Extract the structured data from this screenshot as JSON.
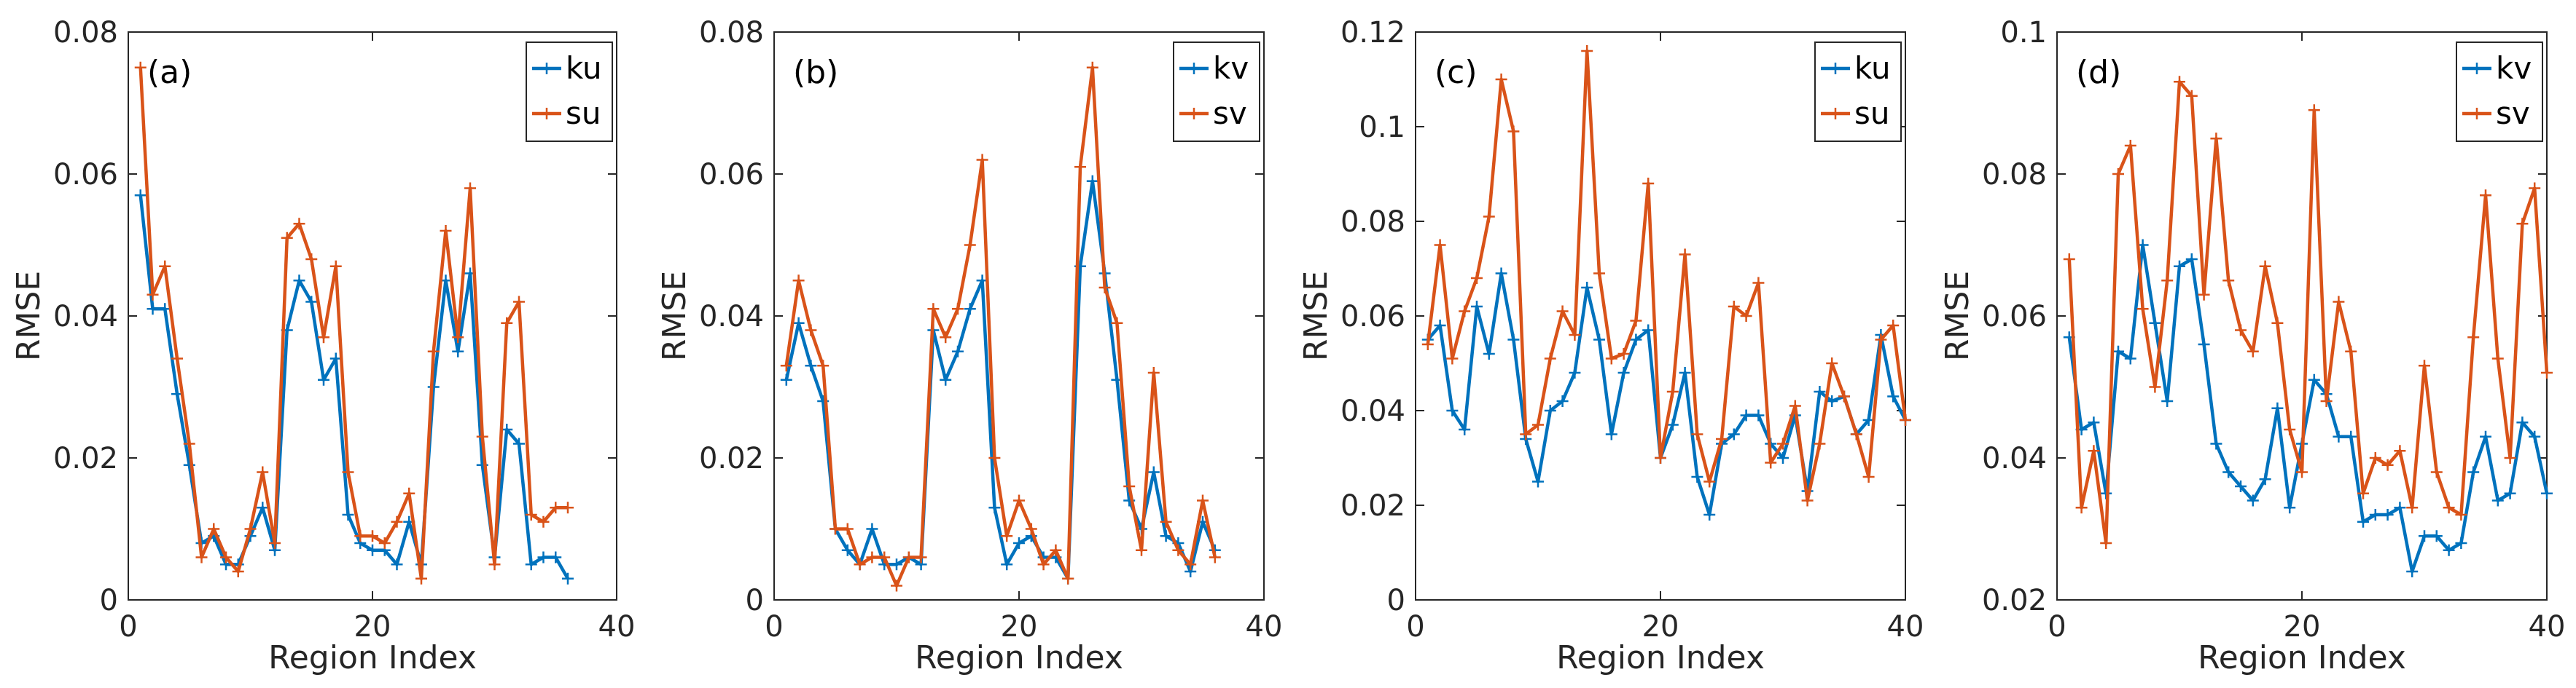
{
  "chart_data": [
    {
      "type": "line",
      "panel_label": "(a)",
      "xlabel": "Region Index",
      "ylabel": "RMSE",
      "xlim": [
        0,
        40
      ],
      "ylim": [
        0,
        0.08
      ],
      "xticks": [
        0,
        20,
        40
      ],
      "xtick_labels": [
        "0",
        "20",
        "40"
      ],
      "yticks": [
        0,
        0.02,
        0.04,
        0.06,
        0.08
      ],
      "ytick_labels": [
        "0",
        "0.02",
        "0.04",
        "0.06",
        "0.08"
      ],
      "legend_position": "top-right",
      "x": [
        1,
        2,
        3,
        4,
        5,
        6,
        7,
        8,
        9,
        10,
        11,
        12,
        13,
        14,
        15,
        16,
        17,
        18,
        19,
        20,
        21,
        22,
        23,
        24,
        25,
        26,
        27,
        28,
        29,
        30,
        31,
        32,
        33,
        34,
        35,
        36
      ],
      "series": [
        {
          "name": "ku",
          "color": "#0072BD",
          "values": [
            0.057,
            0.041,
            0.041,
            0.029,
            0.019,
            0.008,
            0.009,
            0.005,
            0.005,
            0.009,
            0.013,
            0.007,
            0.038,
            0.045,
            0.042,
            0.031,
            0.034,
            0.012,
            0.008,
            0.007,
            0.007,
            0.005,
            0.011,
            0.005,
            0.03,
            0.045,
            0.035,
            0.046,
            0.019,
            0.006,
            0.024,
            0.022,
            0.005,
            0.006,
            0.006,
            0.003
          ]
        },
        {
          "name": "su",
          "color": "#D95319",
          "values": [
            0.075,
            0.043,
            0.047,
            0.034,
            0.022,
            0.006,
            0.01,
            0.006,
            0.004,
            0.01,
            0.018,
            0.008,
            0.051,
            0.053,
            0.048,
            0.037,
            0.047,
            0.018,
            0.009,
            0.009,
            0.008,
            0.011,
            0.015,
            0.003,
            0.035,
            0.052,
            0.037,
            0.058,
            0.023,
            0.005,
            0.039,
            0.042,
            0.012,
            0.011,
            0.013,
            0.013
          ]
        }
      ]
    },
    {
      "type": "line",
      "panel_label": "(b)",
      "xlabel": "Region Index",
      "ylabel": "RMSE",
      "xlim": [
        0,
        40
      ],
      "ylim": [
        0,
        0.08
      ],
      "xticks": [
        0,
        20,
        40
      ],
      "xtick_labels": [
        "0",
        "20",
        "40"
      ],
      "yticks": [
        0,
        0.02,
        0.04,
        0.06,
        0.08
      ],
      "ytick_labels": [
        "0",
        "0.02",
        "0.04",
        "0.06",
        "0.08"
      ],
      "legend_position": "top-right",
      "x": [
        1,
        2,
        3,
        4,
        5,
        6,
        7,
        8,
        9,
        10,
        11,
        12,
        13,
        14,
        15,
        16,
        17,
        18,
        19,
        20,
        21,
        22,
        23,
        24,
        25,
        26,
        27,
        28,
        29,
        30,
        31,
        32,
        33,
        34,
        35,
        36
      ],
      "series": [
        {
          "name": "kv",
          "color": "#0072BD",
          "values": [
            0.031,
            0.039,
            0.033,
            0.028,
            0.01,
            0.007,
            0.005,
            0.01,
            0.005,
            0.005,
            0.006,
            0.005,
            0.038,
            0.031,
            0.035,
            0.041,
            0.045,
            0.013,
            0.005,
            0.008,
            0.009,
            0.006,
            0.006,
            0.003,
            0.047,
            0.059,
            0.046,
            0.031,
            0.014,
            0.01,
            0.018,
            0.009,
            0.008,
            0.004,
            0.011,
            0.007
          ]
        },
        {
          "name": "sv",
          "color": "#D95319",
          "values": [
            0.033,
            0.045,
            0.038,
            0.033,
            0.01,
            0.01,
            0.005,
            0.006,
            0.006,
            0.002,
            0.006,
            0.006,
            0.041,
            0.037,
            0.041,
            0.05,
            0.062,
            0.02,
            0.009,
            0.014,
            0.01,
            0.005,
            0.007,
            0.003,
            0.061,
            0.075,
            0.044,
            0.039,
            0.016,
            0.007,
            0.032,
            0.011,
            0.007,
            0.005,
            0.014,
            0.006
          ]
        }
      ]
    },
    {
      "type": "line",
      "panel_label": "(c)",
      "xlabel": "Region Index",
      "ylabel": "RMSE",
      "xlim": [
        0,
        40
      ],
      "ylim": [
        0,
        0.12
      ],
      "xticks": [
        0,
        20,
        40
      ],
      "xtick_labels": [
        "0",
        "20",
        "40"
      ],
      "yticks": [
        0,
        0.02,
        0.04,
        0.06,
        0.08,
        0.1,
        0.12
      ],
      "ytick_labels": [
        "0",
        "0.02",
        "0.04",
        "0.06",
        "0.08",
        "0.1",
        "0.12"
      ],
      "legend_position": "top-right",
      "x": [
        1,
        2,
        3,
        4,
        5,
        6,
        7,
        8,
        9,
        10,
        11,
        12,
        13,
        14,
        15,
        16,
        17,
        18,
        19,
        20,
        21,
        22,
        23,
        24,
        25,
        26,
        27,
        28,
        29,
        30,
        31,
        32,
        33,
        34,
        35,
        36,
        37,
        38,
        39,
        40
      ],
      "series": [
        {
          "name": "ku",
          "color": "#0072BD",
          "values": [
            0.055,
            0.058,
            0.04,
            0.036,
            0.062,
            0.052,
            0.069,
            0.055,
            0.034,
            0.025,
            0.04,
            0.042,
            0.048,
            0.066,
            0.055,
            0.035,
            0.048,
            0.055,
            0.057,
            0.03,
            0.037,
            0.048,
            0.026,
            0.018,
            0.033,
            0.035,
            0.039,
            0.039,
            0.033,
            0.03,
            0.039,
            0.023,
            0.044,
            0.042,
            0.043,
            0.035,
            0.038,
            0.056,
            0.043,
            0.038
          ]
        },
        {
          "name": "su",
          "color": "#D95319",
          "values": [
            0.054,
            0.075,
            0.051,
            0.061,
            0.068,
            0.081,
            0.11,
            0.099,
            0.035,
            0.037,
            0.051,
            0.061,
            0.056,
            0.116,
            0.069,
            0.051,
            0.052,
            0.059,
            0.088,
            0.03,
            0.044,
            0.073,
            0.035,
            0.025,
            0.034,
            0.062,
            0.06,
            0.067,
            0.029,
            0.033,
            0.041,
            0.021,
            0.033,
            0.05,
            0.043,
            0.035,
            0.026,
            0.055,
            0.058,
            0.038
          ]
        }
      ]
    },
    {
      "type": "line",
      "panel_label": "(d)",
      "xlabel": "Region Index",
      "ylabel": "RMSE",
      "xlim": [
        0,
        40
      ],
      "ylim": [
        0.02,
        0.1
      ],
      "xticks": [
        0,
        20,
        40
      ],
      "xtick_labels": [
        "0",
        "20",
        "40"
      ],
      "yticks": [
        0.02,
        0.04,
        0.06,
        0.08,
        0.1
      ],
      "ytick_labels": [
        "0.02",
        "0.04",
        "0.06",
        "0.08",
        "0.1"
      ],
      "legend_position": "top-right",
      "x": [
        1,
        2,
        3,
        4,
        5,
        6,
        7,
        8,
        9,
        10,
        11,
        12,
        13,
        14,
        15,
        16,
        17,
        18,
        19,
        20,
        21,
        22,
        23,
        24,
        25,
        26,
        27,
        28,
        29,
        30,
        31,
        32,
        33,
        34,
        35,
        36,
        37,
        38,
        39,
        40
      ],
      "series": [
        {
          "name": "kv",
          "color": "#0072BD",
          "values": [
            0.057,
            0.044,
            0.045,
            0.035,
            0.055,
            0.054,
            0.07,
            0.059,
            0.048,
            0.067,
            0.068,
            0.056,
            0.042,
            0.038,
            0.036,
            0.034,
            0.037,
            0.047,
            0.033,
            0.042,
            0.051,
            0.049,
            0.043,
            0.043,
            0.031,
            0.032,
            0.032,
            0.033,
            0.024,
            0.029,
            0.029,
            0.027,
            0.028,
            0.038,
            0.043,
            0.034,
            0.035,
            0.045,
            0.043,
            0.035
          ]
        },
        {
          "name": "sv",
          "color": "#D95319",
          "values": [
            0.068,
            0.033,
            0.041,
            0.028,
            0.08,
            0.084,
            0.061,
            0.05,
            0.065,
            0.093,
            0.091,
            0.063,
            0.085,
            0.065,
            0.058,
            0.055,
            0.067,
            0.059,
            0.044,
            0.038,
            0.089,
            0.048,
            0.062,
            0.055,
            0.035,
            0.04,
            0.039,
            0.041,
            0.033,
            0.053,
            0.038,
            0.033,
            0.032,
            0.057,
            0.077,
            0.054,
            0.04,
            0.073,
            0.078,
            0.052
          ]
        }
      ]
    }
  ]
}
